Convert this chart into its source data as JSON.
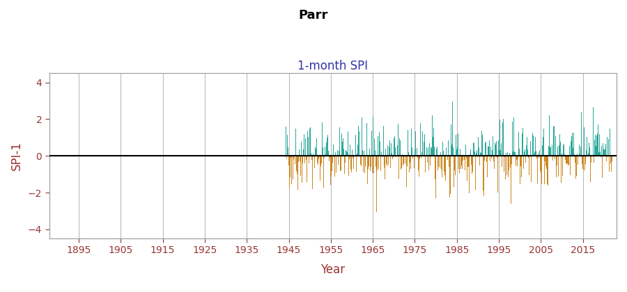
{
  "title": "Parr",
  "subtitle": "1-month SPI",
  "ylabel": "SPI-1",
  "xlabel": "Year",
  "title_fontsize": 13,
  "subtitle_fontsize": 12,
  "label_fontsize": 12,
  "tick_fontsize": 10,
  "title_color": "#000000",
  "subtitle_color": "#3333AA",
  "axis_label_color": "#993333",
  "tick_color": "#993333",
  "color_positive": "#2BA89A",
  "color_negative": "#CC8822",
  "ylim": [
    -4.5,
    4.5
  ],
  "yticks": [
    -4,
    -2,
    0,
    2,
    4
  ],
  "xlim": [
    1888,
    2023
  ],
  "xticks": [
    1895,
    1905,
    1915,
    1925,
    1935,
    1945,
    1955,
    1965,
    1975,
    1985,
    1995,
    2005,
    2015
  ],
  "data_start_year": 1944,
  "background_color": "#FFFFFF",
  "plot_bg_color": "#FFFFFF",
  "grid_color": "#BBBBBB",
  "zero_line_color": "#000000",
  "seed": 42
}
